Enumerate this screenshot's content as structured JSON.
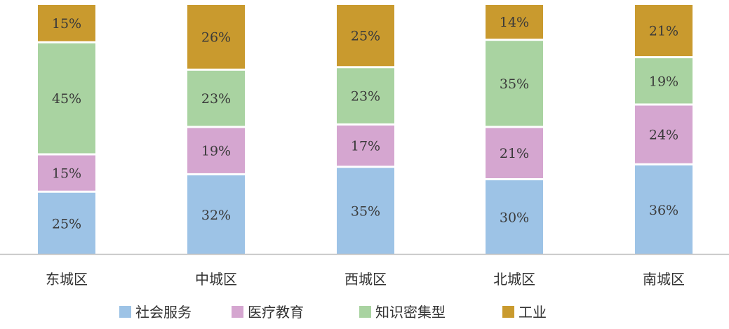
{
  "chart_data": {
    "type": "bar",
    "stacked": true,
    "percent_stacked": true,
    "categories": [
      "东城区",
      "中城区",
      "西城区",
      "北城区",
      "南城区"
    ],
    "series": [
      {
        "name": "社会服务",
        "color": "#9dc3e6",
        "values": [
          25,
          32,
          35,
          30,
          36
        ]
      },
      {
        "name": "医疗教育",
        "color": "#d5a6d0",
        "values": [
          15,
          19,
          17,
          21,
          24
        ]
      },
      {
        "name": "知识密集型",
        "color": "#a9d3a1",
        "values": [
          45,
          23,
          23,
          35,
          19
        ]
      },
      {
        "name": "工业",
        "color": "#c99a2e",
        "values": [
          15,
          26,
          25,
          14,
          21
        ]
      }
    ],
    "data_labels": true,
    "value_suffix": "%",
    "legend_position": "bottom",
    "grid": false,
    "axis_color": "#bfbfbf",
    "title": "",
    "xlabel": "",
    "ylabel": ""
  }
}
